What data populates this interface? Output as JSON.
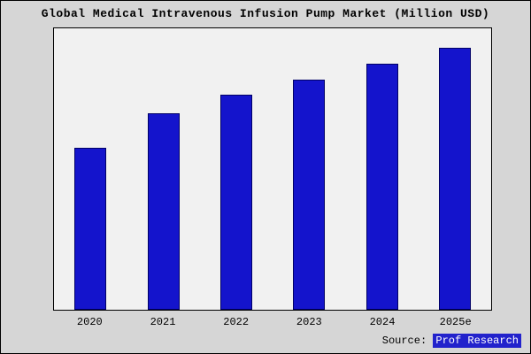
{
  "title": "Global Medical Intravenous Infusion Pump Market (Million USD)",
  "source": {
    "label": "Source:",
    "name": "Prof Research"
  },
  "colors": {
    "background": "#d6d6d6",
    "plot_background": "#f1f1f1",
    "bar_fill": "#1414cc",
    "bar_border": "#000066",
    "source_highlight": "#2222cc"
  },
  "chart_data": {
    "type": "bar",
    "title": "Global Medical Intravenous Infusion Pump Market (Million USD)",
    "categories": [
      "2020",
      "2021",
      "2022",
      "2023",
      "2024",
      "2025e"
    ],
    "values": [
      62,
      75,
      82,
      88,
      94,
      100
    ],
    "xlabel": "",
    "ylabel": "",
    "ylim": [
      0,
      107.5
    ],
    "y_axis_tick_labels_visible": false,
    "grid": false,
    "legend": false
  }
}
